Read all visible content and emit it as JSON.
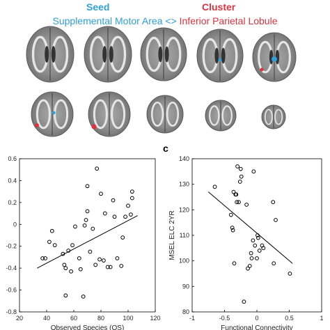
{
  "header": {
    "seed_label": "Seed",
    "cluster_label": "Cluster",
    "seed_region": "Supplemental Motor Area",
    "connector": "<>",
    "cluster_region": "Inferior Parietal Lobule",
    "seed_color": "#2e9fd9",
    "cluster_color": "#e0323c"
  },
  "panel_c_label": "c",
  "chart_data": [
    {
      "type": "scatter",
      "xlabel": "Observed Species (OS)",
      "ylabel": "",
      "xlim": [
        20,
        120
      ],
      "ylim": [
        -0.8,
        0.6
      ],
      "xticks": [
        20,
        40,
        60,
        80,
        100,
        120
      ],
      "yticks": [
        -0.8,
        -0.6,
        -0.4,
        -0.2,
        0,
        0.2,
        0.4,
        0.6
      ],
      "ytick_labels": [
        "-0.8",
        "-0.6",
        "-0.4",
        "-0.2",
        "0",
        "0.2",
        "0.4",
        "0.6"
      ],
      "points": [
        [
          37,
          -0.31
        ],
        [
          39,
          -0.31
        ],
        [
          42,
          -0.16
        ],
        [
          44,
          -0.06
        ],
        [
          46,
          -0.19
        ],
        [
          52,
          -0.27
        ],
        [
          53,
          -0.37
        ],
        [
          54,
          -0.4
        ],
        [
          54,
          -0.65
        ],
        [
          56,
          -0.24
        ],
        [
          58,
          -0.43
        ],
        [
          59,
          -0.19
        ],
        [
          61,
          -0.02
        ],
        [
          64,
          -0.31
        ],
        [
          65,
          -0.41
        ],
        [
          67,
          -0.66
        ],
        [
          68,
          -0.01
        ],
        [
          69,
          0.04
        ],
        [
          70,
          0.12
        ],
        [
          70,
          0.35
        ],
        [
          72,
          -0.25
        ],
        [
          74,
          -0.04
        ],
        [
          76,
          -0.37
        ],
        [
          77,
          0.51
        ],
        [
          79,
          -0.32
        ],
        [
          80,
          0.28
        ],
        [
          82,
          -0.33
        ],
        [
          83,
          0.1
        ],
        [
          85,
          -0.39
        ],
        [
          87,
          -0.39
        ],
        [
          89,
          0.22
        ],
        [
          90,
          0.07
        ],
        [
          92,
          -0.31
        ],
        [
          95,
          -0.38
        ],
        [
          96,
          -0.12
        ],
        [
          98,
          0.07
        ],
        [
          100,
          0.17
        ],
        [
          102,
          0.09
        ],
        [
          103,
          0.24
        ],
        [
          103,
          0.3
        ]
      ],
      "fit_line": [
        [
          33,
          -0.4
        ],
        [
          107,
          0.08
        ]
      ]
    },
    {
      "type": "scatter",
      "xlabel": "Functional Connectivity",
      "ylabel": "MSEL ELC 2YR",
      "xlim": [
        -1,
        1
      ],
      "ylim": [
        80,
        140
      ],
      "xticks": [
        -1,
        -0.5,
        0,
        0.5,
        1
      ],
      "xtick_labels": [
        "-1",
        "-0.5",
        "0",
        "0.5",
        "1"
      ],
      "yticks": [
        80,
        90,
        100,
        110,
        120,
        130,
        140
      ],
      "points": [
        [
          -0.65,
          129
        ],
        [
          -0.4,
          118
        ],
        [
          -0.38,
          113
        ],
        [
          -0.37,
          112
        ],
        [
          -0.36,
          127
        ],
        [
          -0.35,
          99
        ],
        [
          -0.33,
          126
        ],
        [
          -0.32,
          126
        ],
        [
          -0.31,
          123
        ],
        [
          -0.3,
          137
        ],
        [
          -0.28,
          123
        ],
        [
          -0.26,
          131
        ],
        [
          -0.25,
          136
        ],
        [
          -0.24,
          133
        ],
        [
          -0.2,
          84
        ],
        [
          -0.16,
          122
        ],
        [
          -0.14,
          97
        ],
        [
          -0.11,
          98
        ],
        [
          -0.09,
          103
        ],
        [
          -0.08,
          101
        ],
        [
          -0.06,
          108
        ],
        [
          -0.05,
          135
        ],
        [
          -0.03,
          106
        ],
        [
          0.0,
          101
        ],
        [
          0.01,
          110
        ],
        [
          0.02,
          109
        ],
        [
          0.04,
          104
        ],
        [
          0.08,
          106
        ],
        [
          0.1,
          105
        ],
        [
          0.25,
          123
        ],
        [
          0.26,
          99
        ],
        [
          0.29,
          116
        ],
        [
          0.51,
          95
        ]
      ],
      "fit_line": [
        [
          -0.75,
          127
        ],
        [
          0.55,
          99
        ]
      ]
    }
  ]
}
